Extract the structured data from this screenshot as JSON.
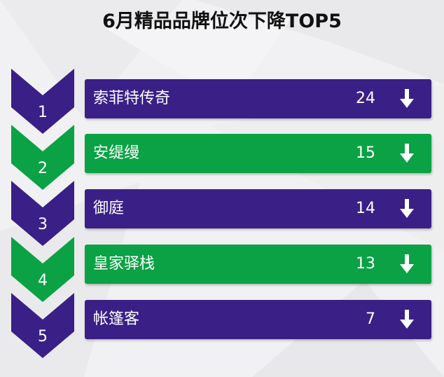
{
  "title": "6月精品品牌位次下降TOP5",
  "colors": {
    "purple": "#3a1f87",
    "green": "#0aa245",
    "background": "#f1f1f3"
  },
  "rows": [
    {
      "rank": "1",
      "brand": "索菲特传奇",
      "value": "24",
      "color": "purple",
      "arrow_icon": "arrow-down-icon"
    },
    {
      "rank": "2",
      "brand": "安缇缦",
      "value": "15",
      "color": "green",
      "arrow_icon": "arrow-down-icon"
    },
    {
      "rank": "3",
      "brand": "御庭",
      "value": "14",
      "color": "purple",
      "arrow_icon": "arrow-down-icon"
    },
    {
      "rank": "4",
      "brand": "皇家驿栈",
      "value": "13",
      "color": "green",
      "arrow_icon": "arrow-down-icon"
    },
    {
      "rank": "5",
      "brand": "帐篷客",
      "value": "7",
      "color": "purple",
      "arrow_icon": "arrow-down-icon"
    }
  ]
}
